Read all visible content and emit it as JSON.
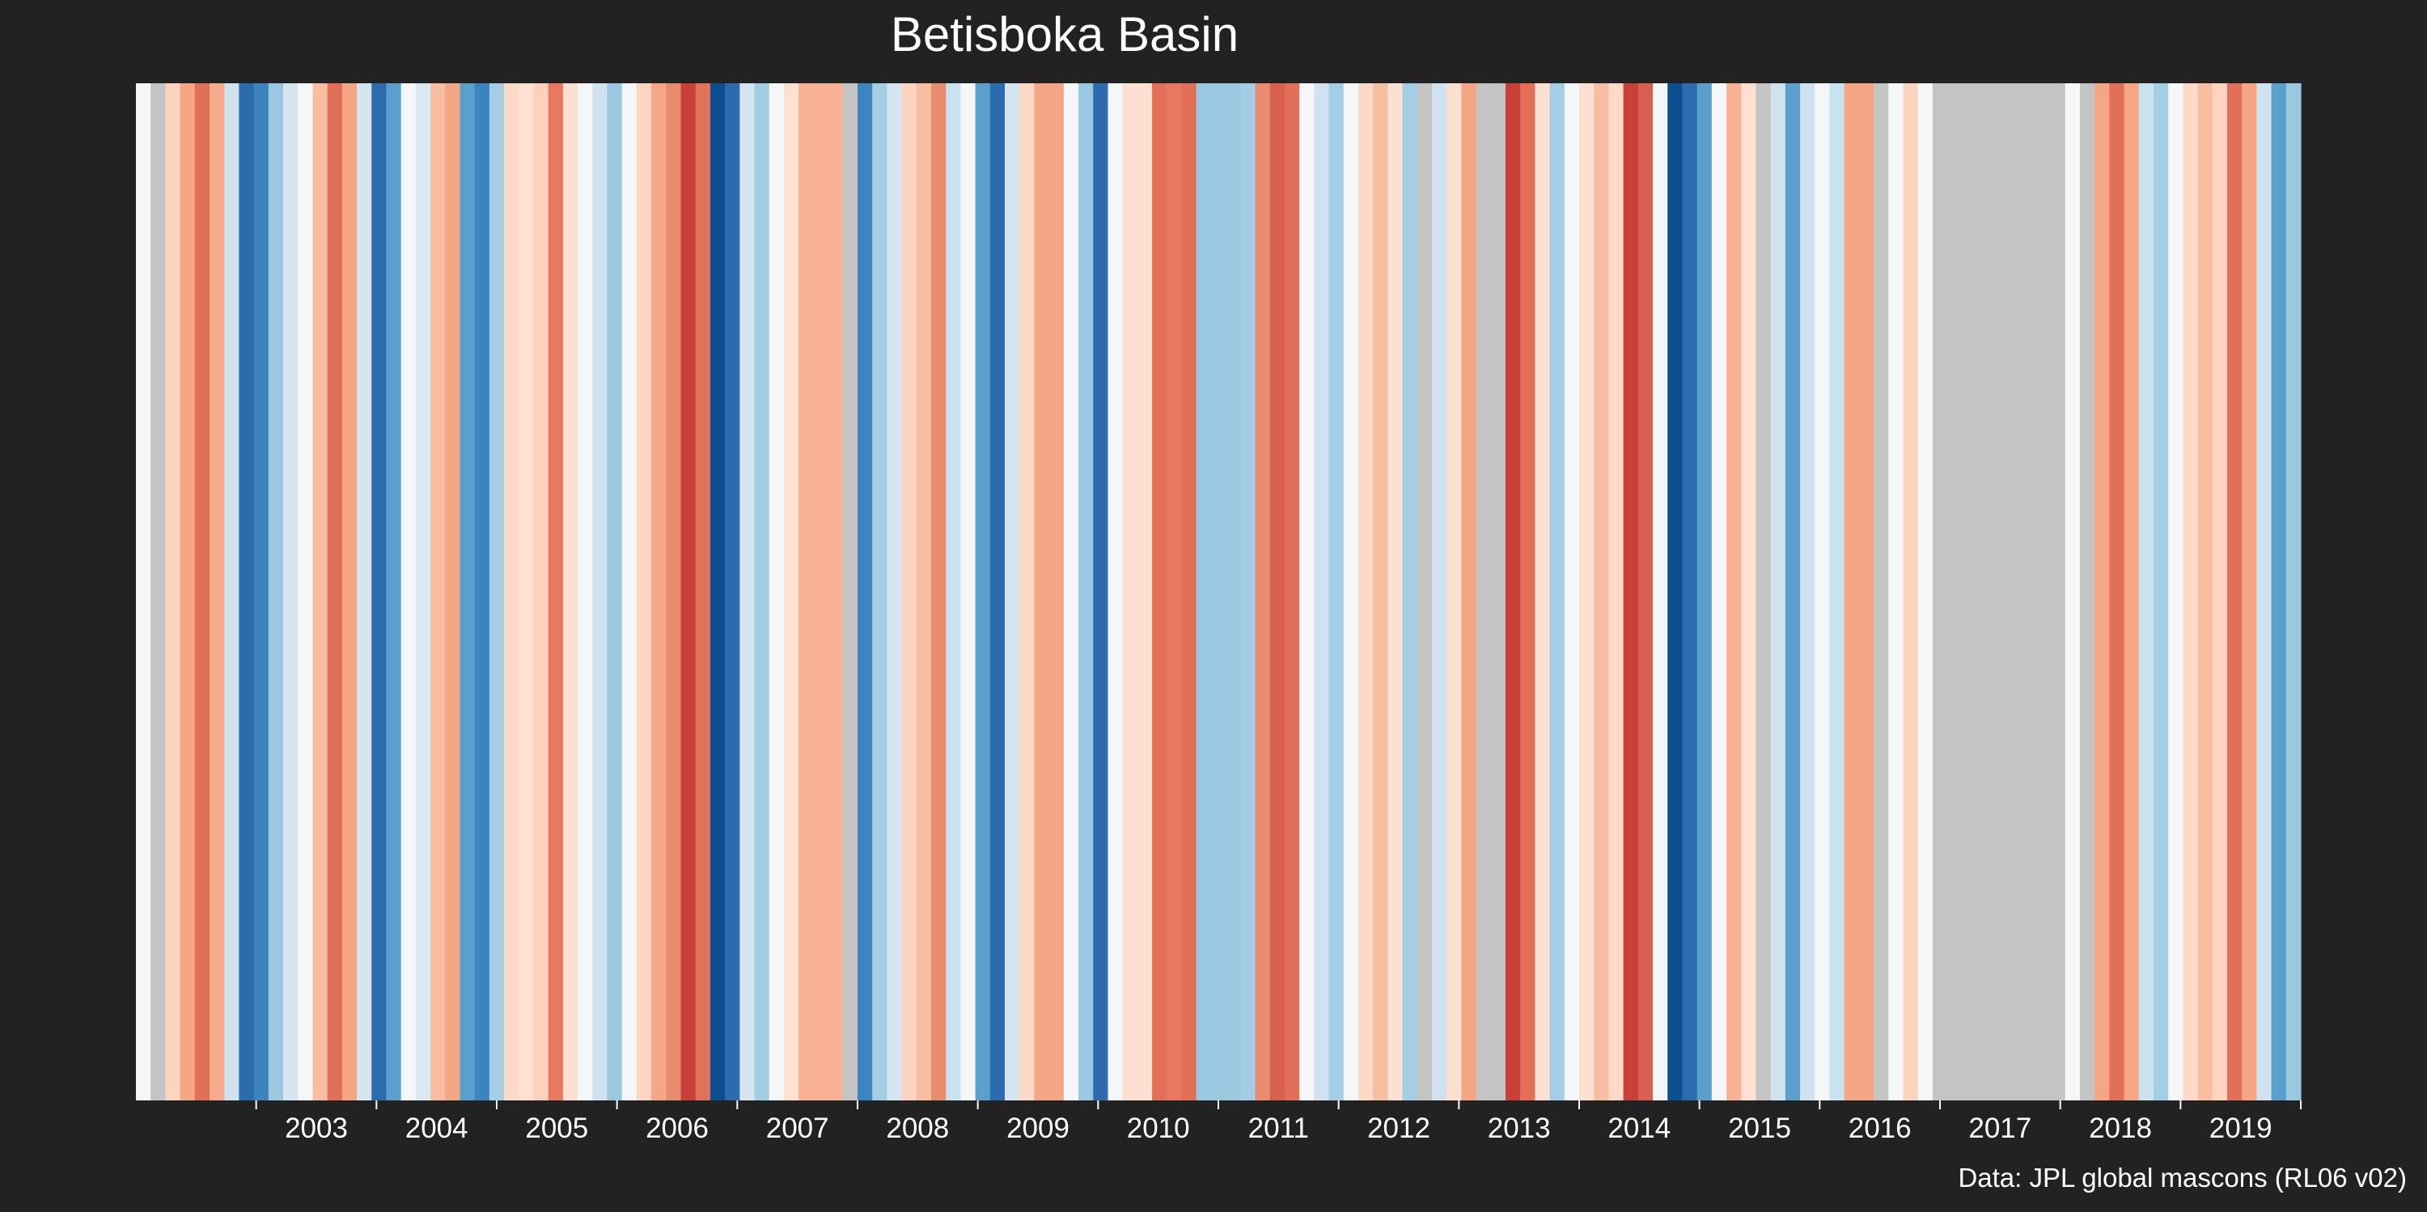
{
  "chart_data": {
    "type": "heatmap",
    "title": "Betisboka Basin",
    "caption": "Data: JPL global mascons (RL06 v02)",
    "x_start_year": 2002,
    "x_end_year": 2020,
    "tick_labels": [
      "2003",
      "2004",
      "2005",
      "2006",
      "2007",
      "2008",
      "2009",
      "2010",
      "2011",
      "2012",
      "2013",
      "2014",
      "2015",
      "2016",
      "2017",
      "2018",
      "2019"
    ],
    "stripe_colors": [
      "#f4f6f7",
      "#c4c4c4",
      "#fdd4c0",
      "#f4a685",
      "#e27058",
      "#f5ab8c",
      "#d0e1ef",
      "#2c6cae",
      "#3c84be",
      "#9ac8e1",
      "#d6e6f1",
      "#f4f6f7",
      "#f8bea2",
      "#e27058",
      "#f4a685",
      "#d6e6f1",
      "#2c6cae",
      "#5b9fcd",
      "#f4f6f7",
      "#d9e8f2",
      "#f8bea2",
      "#f4a685",
      "#5b9fcd",
      "#3c84be",
      "#a4cee3",
      "#fddac7",
      "#fde0d1",
      "#fcd0bb",
      "#e8785f",
      "#fde0d1",
      "#f4f6f7",
      "#d0e1ef",
      "#9ac8e1",
      "#f4f6f7",
      "#fdd4c0",
      "#f4a685",
      "#e98b6e",
      "#c9403b",
      "#e0725a",
      "#0b4f90",
      "#2c6cae",
      "#d6e6f1",
      "#a4cee3",
      "#f4f6f7",
      "#fde0d1",
      "#f8b293",
      "#f8b293",
      "#f8b293",
      "#c4c4c4",
      "#3c84be",
      "#a4cee3",
      "#d6e6f1",
      "#fdd4c0",
      "#f8bea2",
      "#e98b6e",
      "#c9e2ef",
      "#f4f6f7",
      "#5b9fcd",
      "#2c6cae",
      "#d6e6f1",
      "#fddac7",
      "#f4a685",
      "#f4a685",
      "#f4f6f7",
      "#9ac8e1",
      "#2c6cae",
      "#f4f6f7",
      "#fde0d1",
      "#fde0d1",
      "#e27058",
      "#e8785f",
      "#e27058",
      "#9ac8e1",
      "#9ac8e1",
      "#9ac8e1",
      "#a4cee3",
      "#e98b6e",
      "#d8604e",
      "#e27058",
      "#f4f6f7",
      "#d0e1ef",
      "#a4cee3",
      "#f4f6f7",
      "#fddac7",
      "#f8bea2",
      "#fde0d1",
      "#a4cee3",
      "#c4c4c4",
      "#d0e1ef",
      "#fde0d1",
      "#f4a685",
      "#c4c4c4",
      "#c4c4c4",
      "#c9403b",
      "#e27058",
      "#fde0d1",
      "#a4cee3",
      "#f4f6f7",
      "#fde0d1",
      "#f8bea2",
      "#fddac7",
      "#c9403b",
      "#d8604e",
      "#f4f6f7",
      "#0b4f90",
      "#2c6cae",
      "#5b9fcd",
      "#f4f6f7",
      "#f8b293",
      "#fde0d1",
      "#c4c4c4",
      "#d0e1ef",
      "#5b9fcd",
      "#d0e1ef",
      "#f4f6f7",
      "#c9e2ef",
      "#f4a685",
      "#f4a685",
      "#c4c4c4",
      "#f4f6f7",
      "#fdd4c0",
      "#f4f6f7",
      "#c4c4c4",
      "#c4c4c4",
      "#c4c4c4",
      "#c4c4c4",
      "#c4c4c4",
      "#c4c4c4",
      "#c4c4c4",
      "#c4c4c4",
      "#c4c4c4",
      "#f4f6f7",
      "#c4c4c4",
      "#f4a685",
      "#e27058",
      "#f4a685",
      "#c9e2ef",
      "#a4cee3",
      "#f4f6f7",
      "#fddac7",
      "#f8bea2",
      "#fdd4c0",
      "#e27058",
      "#f4a685",
      "#d0e1ef",
      "#5b9fcd",
      "#9ac8e1"
    ]
  }
}
